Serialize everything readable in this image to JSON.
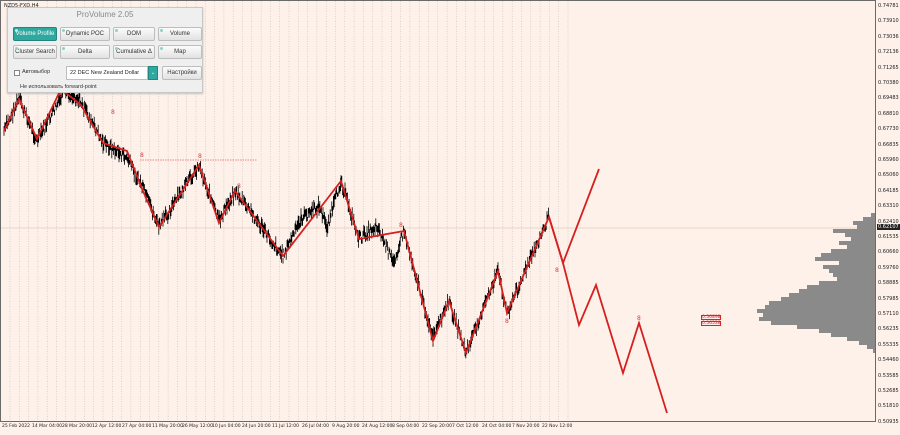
{
  "chart": {
    "symbol": "NZD5-FXD,H4",
    "price_labels": [
      "0.74781",
      "0.73910",
      "0.73036",
      "0.72136",
      "0.71265",
      "0.70380",
      "0.69483",
      "0.68810",
      "0.67730",
      "0.66835",
      "0.65960",
      "0.65060",
      "0.64185",
      "0.63310",
      "0.62410",
      "0.61535",
      "0.60660",
      "0.59760",
      "0.58885",
      "0.57985",
      "0.57110",
      "0.56235",
      "0.55335",
      "0.54460",
      "0.53585",
      "0.52685",
      "0.51810",
      "0.50935"
    ],
    "current_price": "0.62107",
    "time_labels": [
      "25 Feb 2022",
      "14 Mar 04:00",
      "28 Mar 20:00",
      "12 Apr 12:00",
      "27 Apr 04:00",
      "11 May 20:00",
      "26 May 12:00",
      "10 Jun 04:00",
      "24 Jun 20:00",
      "11 Jul 12:00",
      "26 Jul 04:00",
      "9 Aug 20:00",
      "24 Aug 12:00",
      "8 Sep 04:00",
      "22 Sep 20:00",
      "7 Oct 12:00",
      "24 Oct 04:00",
      "7 Nov 20:00",
      "22 Nov 12:00"
    ],
    "level_boxes": [
      "0.56898",
      "0.56538"
    ],
    "wave_marks": [
      "8",
      "8",
      "8",
      "8",
      "8",
      "8",
      "8",
      "8",
      "8",
      "8"
    ],
    "colors": {
      "background": "#fdf1ea",
      "candles": "#000000",
      "wave_line": "#d62020",
      "profile": "#8a8a8a",
      "accent": "#2fa8a0"
    }
  },
  "panel": {
    "title": "ProVolume 2.05",
    "buttons": [
      "Volume Profile",
      "Dynamic POC",
      "DOM",
      "Volume",
      "Cluster Search",
      "Delta",
      "Cumulative Δ",
      "Map"
    ],
    "active_button": "Volume Profile",
    "autochoice_label": "Автовыбор",
    "instrument": "22 DEC New Zealand Dollar",
    "settings_label": "Настройки",
    "forward_label": "Не использовать forward-point"
  }
}
